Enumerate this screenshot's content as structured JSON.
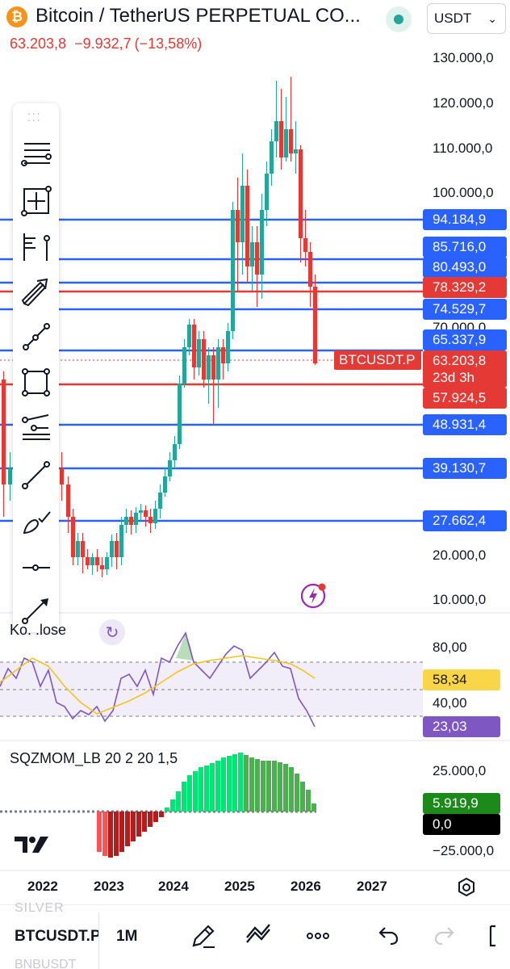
{
  "header": {
    "logo_glyph": "₿",
    "title": "Bitcoin / TetherUS PERPETUAL CO...",
    "currency": "USDT",
    "last_price": "63.203,8",
    "change_abs": "−9.932,7",
    "change_pct": "(−13,58%)"
  },
  "price_axis": {
    "labels": [
      "130.000,0",
      "120.000,0",
      "110.000,0",
      "100.000,0",
      "70.000,0",
      "20.000,0",
      "10.000,0"
    ]
  },
  "levels": [
    {
      "label": "94.184,9",
      "color": "blue"
    },
    {
      "label": "85.716,0",
      "color": "blue"
    },
    {
      "label": "80.493,0",
      "color": "blue"
    },
    {
      "label": "78.329,2",
      "color": "red"
    },
    {
      "label": "74.529,7",
      "color": "blue"
    },
    {
      "label": "65.337,9",
      "color": "blue"
    },
    {
      "label": "57.924,5",
      "color": "red"
    },
    {
      "label": "48.931,4",
      "color": "blue"
    },
    {
      "label": "39.130,7",
      "color": "blue"
    },
    {
      "label": "27.662,4",
      "color": "blue"
    }
  ],
  "last_tag": {
    "symbol": "BTCUSDT.P",
    "price": "63.203,8",
    "countdown": "23d 3h"
  },
  "toolbar": {
    "items": [
      "trend-lines",
      "measure-crosshair",
      "fib-pitchfork",
      "arrow",
      "path",
      "rectangle",
      "fib-retracement",
      "line",
      "brush",
      "horizontal-ray",
      "long-position"
    ]
  },
  "rsi": {
    "label": "RSI 14 close",
    "visible_label": "Ko. .lose",
    "axis": [
      "80,00",
      "40,00"
    ],
    "ma_value": "58,34",
    "value": "23,03"
  },
  "sqz": {
    "label": "SQZMOM_LB 20 2 20 1,5",
    "axis": [
      "25.000,0",
      "−25.000,0"
    ],
    "value": "5.919,9",
    "zero": "0,0"
  },
  "time_axis": [
    "2022",
    "2023",
    "2024",
    "2025",
    "2026",
    "2027"
  ],
  "bottom_bar": {
    "ghost_top": "SILVER",
    "symbol": "BTCUSDT.P",
    "interval": "1M",
    "ghost_bottom": "BNBUSDT"
  },
  "colors": {
    "up": "#26a69a",
    "down": "#e53935",
    "level_blue": "#2962ff",
    "level_red": "#e53935",
    "rsi_line": "#7e57c2",
    "rsi_ma": "#f5c518",
    "sqz_up_strong": "#00e676",
    "sqz_up_weak": "#4caf50",
    "sqz_down_strong": "#ff5252",
    "sqz_down_weak": "#b71c1c"
  }
}
